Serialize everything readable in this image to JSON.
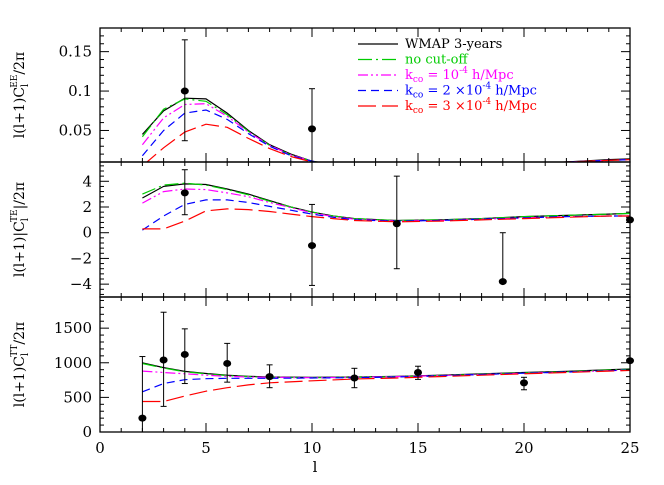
{
  "chart_data": [
    {
      "type": "line",
      "ylabel": "l(l+1)C_l^EE/2π",
      "ylabel_parts": {
        "pre": "l(l+1)C",
        "sub": "l",
        "sup": "EE",
        "post": "/2π"
      },
      "xlim": [
        0,
        25
      ],
      "ylim": [
        0.01,
        0.18
      ],
      "yticks": [
        0.05,
        0.1,
        0.15
      ],
      "ytick_labels": [
        "0.05",
        "0.1",
        "0.15"
      ],
      "legend": {
        "placement": "top-right",
        "entries": [
          {
            "label_parts": [
              "WMAP 3-years"
            ],
            "color": "#000000",
            "dash": "solid"
          },
          {
            "label_parts": [
              "no cut-off"
            ],
            "color": "#00cc00",
            "dash": "dashdot"
          },
          {
            "label_parts": [
              "k",
              "co",
              " = 10",
              "-4",
              " h/Mpc"
            ],
            "color": "#ff00ff",
            "dash": "dashdotdot"
          },
          {
            "label_parts": [
              "k",
              "co",
              " = 2 ×10",
              "-4",
              " h/Mpc"
            ],
            "color": "#0000ff",
            "dash": "dashed"
          },
          {
            "label_parts": [
              "k",
              "co",
              " = 3 ×10",
              "-4",
              " h/Mpc"
            ],
            "color": "#ff0000",
            "dash": "longdash"
          }
        ]
      },
      "series": [
        {
          "color": "#000000",
          "dash": "solid",
          "x": [
            2,
            3,
            4,
            5,
            6,
            7,
            8,
            9,
            10,
            11,
            12,
            14,
            16,
            18,
            20,
            22,
            24,
            25
          ],
          "y": [
            0.045,
            0.075,
            0.091,
            0.09,
            0.072,
            0.05,
            0.032,
            0.02,
            0.011,
            0.007,
            0.005,
            0.004,
            0.005,
            0.006,
            0.008,
            0.01,
            0.013,
            0.014
          ]
        },
        {
          "color": "#00cc00",
          "dash": "dashdot",
          "x": [
            2,
            3,
            4,
            5,
            6,
            7,
            8,
            9,
            10,
            11,
            12,
            14,
            16,
            18,
            20,
            22,
            24,
            25
          ],
          "y": [
            0.042,
            0.077,
            0.09,
            0.087,
            0.07,
            0.049,
            0.031,
            0.019,
            0.011,
            0.007,
            0.005,
            0.004,
            0.005,
            0.006,
            0.008,
            0.01,
            0.012,
            0.013
          ]
        },
        {
          "color": "#ff00ff",
          "dash": "dashdotdot",
          "x": [
            2,
            3,
            4,
            5,
            6,
            7,
            8,
            9,
            10,
            11,
            12,
            14,
            16,
            18,
            20,
            22,
            24,
            25
          ],
          "y": [
            0.032,
            0.066,
            0.083,
            0.084,
            0.068,
            0.048,
            0.031,
            0.019,
            0.011,
            0.007,
            0.005,
            0.004,
            0.005,
            0.006,
            0.008,
            0.01,
            0.012,
            0.013
          ]
        },
        {
          "color": "#0000ff",
          "dash": "dashed",
          "x": [
            2,
            3,
            4,
            5,
            6,
            7,
            8,
            9,
            10,
            11,
            12,
            14,
            16,
            18,
            20,
            22,
            24,
            25
          ],
          "y": [
            0.018,
            0.05,
            0.072,
            0.076,
            0.064,
            0.046,
            0.03,
            0.018,
            0.011,
            0.007,
            0.005,
            0.004,
            0.005,
            0.006,
            0.008,
            0.01,
            0.012,
            0.013
          ]
        },
        {
          "color": "#ff0000",
          "dash": "longdash",
          "x": [
            2,
            3,
            4,
            5,
            6,
            7,
            8,
            9,
            10,
            11,
            12,
            14,
            16,
            18,
            20,
            22,
            24,
            25
          ],
          "y": [
            0.005,
            0.028,
            0.048,
            0.058,
            0.054,
            0.04,
            0.027,
            0.017,
            0.01,
            0.007,
            0.005,
            0.004,
            0.005,
            0.006,
            0.008,
            0.01,
            0.012,
            0.013
          ]
        }
      ],
      "points": [
        {
          "x": 4,
          "y": 0.1,
          "err_low": 0.037,
          "err_high": 0.165
        },
        {
          "x": 10,
          "y": 0.052,
          "err_low": 0.0,
          "err_high": 0.103
        }
      ]
    },
    {
      "type": "line",
      "ylabel": "l(l+1)C_l^TE/2π",
      "ylabel_parts": {
        "pre": "l(l+1)|C",
        "sub": "l",
        "sup": "TE",
        "post": "|/2π"
      },
      "xlim": [
        0,
        25
      ],
      "ylim": [
        -5,
        5.5
      ],
      "yticks": [
        -4,
        -2,
        0,
        2,
        4
      ],
      "ytick_labels": [
        "−4",
        "−2",
        "0",
        "2",
        "4"
      ],
      "series": [
        {
          "color": "#000000",
          "dash": "solid",
          "x": [
            2,
            3,
            4,
            5,
            6,
            7,
            8,
            9,
            10,
            11,
            12,
            14,
            16,
            18,
            20,
            22,
            24,
            25
          ],
          "y": [
            2.7,
            3.6,
            3.8,
            3.75,
            3.4,
            3.0,
            2.5,
            2.0,
            1.6,
            1.3,
            1.1,
            0.95,
            1.0,
            1.1,
            1.25,
            1.35,
            1.45,
            1.5
          ]
        },
        {
          "color": "#00cc00",
          "dash": "dashdot",
          "x": [
            2,
            3,
            4,
            5,
            6,
            7,
            8,
            9,
            10,
            11,
            12,
            14,
            16,
            18,
            20,
            22,
            24,
            25
          ],
          "y": [
            3.0,
            3.7,
            3.85,
            3.7,
            3.35,
            2.95,
            2.45,
            2.0,
            1.6,
            1.3,
            1.1,
            0.95,
            1.0,
            1.1,
            1.25,
            1.35,
            1.45,
            1.5
          ]
        },
        {
          "color": "#ff00ff",
          "dash": "dashdotdot",
          "x": [
            2,
            3,
            4,
            5,
            6,
            7,
            8,
            9,
            10,
            11,
            12,
            14,
            16,
            18,
            20,
            22,
            24,
            25
          ],
          "y": [
            2.3,
            3.2,
            3.4,
            3.35,
            3.1,
            2.8,
            2.35,
            1.95,
            1.55,
            1.25,
            1.05,
            0.9,
            0.95,
            1.05,
            1.15,
            1.25,
            1.3,
            1.3
          ]
        },
        {
          "color": "#0000ff",
          "dash": "dashed",
          "x": [
            2,
            3,
            4,
            5,
            6,
            7,
            8,
            9,
            10,
            11,
            12,
            14,
            16,
            18,
            20,
            22,
            24,
            25
          ],
          "y": [
            0.2,
            1.3,
            2.2,
            2.55,
            2.55,
            2.35,
            2.05,
            1.75,
            1.45,
            1.2,
            1.0,
            0.9,
            0.95,
            1.05,
            1.15,
            1.25,
            1.3,
            1.3
          ]
        },
        {
          "color": "#ff0000",
          "dash": "longdash",
          "x": [
            2,
            3,
            4,
            5,
            6,
            7,
            8,
            9,
            10,
            11,
            12,
            14,
            16,
            18,
            20,
            22,
            24,
            25
          ],
          "y": [
            0.3,
            0.3,
            0.9,
            1.7,
            1.85,
            1.8,
            1.65,
            1.45,
            1.25,
            1.1,
            0.95,
            0.85,
            0.9,
            1.0,
            1.1,
            1.2,
            1.3,
            1.3
          ]
        }
      ],
      "points": [
        {
          "x": 4,
          "y": 3.1,
          "err_low": 1.4,
          "err_high": 4.9
        },
        {
          "x": 10,
          "y": -1.0,
          "err_low": -4.1,
          "err_high": 2.2
        },
        {
          "x": 14,
          "y": 0.7,
          "err_low": -2.8,
          "err_high": 4.4
        },
        {
          "x": 19,
          "y": -3.8,
          "err_low": -3.8,
          "err_high": 0.0
        },
        {
          "x": 25,
          "y": 1.0,
          "err_low": 1.0,
          "err_high": 1.0
        }
      ]
    },
    {
      "type": "line",
      "ylabel": "l(l+1)C_l^TT/2π",
      "ylabel_parts": {
        "pre": "l(l+1)C",
        "sub": "l",
        "sup": "TT",
        "post": "/2π"
      },
      "xlabel": "l",
      "xlim": [
        0,
        25
      ],
      "ylim": [
        0,
        1950
      ],
      "yticks": [
        0,
        500,
        1000,
        1500
      ],
      "ytick_labels": [
        "0",
        "500",
        "1000",
        "1500"
      ],
      "xticks": [
        0,
        5,
        10,
        15,
        20,
        25
      ],
      "xtick_labels": [
        "0",
        "5",
        "10",
        "15",
        "20",
        "25"
      ],
      "series": [
        {
          "color": "#000000",
          "dash": "solid",
          "x": [
            2,
            3,
            4,
            5,
            6,
            7,
            8,
            10,
            12,
            14,
            16,
            18,
            20,
            22,
            24,
            25
          ],
          "y": [
            1000,
            930,
            875,
            845,
            820,
            805,
            795,
            790,
            795,
            805,
            820,
            840,
            860,
            875,
            900,
            910
          ]
        },
        {
          "color": "#00cc00",
          "dash": "dashdot",
          "x": [
            2,
            3,
            4,
            5,
            6,
            7,
            8,
            10,
            12,
            14,
            16,
            18,
            20,
            22,
            24,
            25
          ],
          "y": [
            990,
            925,
            870,
            840,
            815,
            800,
            790,
            785,
            790,
            800,
            815,
            835,
            855,
            870,
            895,
            905
          ]
        },
        {
          "color": "#ff00ff",
          "dash": "dashdotdot",
          "x": [
            2,
            3,
            4,
            5,
            6,
            7,
            8,
            10,
            12,
            14,
            16,
            18,
            20,
            22,
            24,
            25
          ],
          "y": [
            880,
            860,
            840,
            820,
            805,
            795,
            790,
            785,
            790,
            800,
            815,
            830,
            850,
            865,
            885,
            895
          ]
        },
        {
          "color": "#0000ff",
          "dash": "dashed",
          "x": [
            2,
            3,
            4,
            5,
            6,
            7,
            8,
            10,
            12,
            14,
            16,
            18,
            20,
            22,
            24,
            25
          ],
          "y": [
            580,
            700,
            755,
            770,
            775,
            775,
            775,
            780,
            785,
            795,
            810,
            830,
            850,
            865,
            885,
            895
          ]
        },
        {
          "color": "#ff0000",
          "dash": "longdash",
          "x": [
            2,
            3,
            4,
            5,
            6,
            7,
            8,
            10,
            12,
            14,
            16,
            18,
            20,
            22,
            24,
            25
          ],
          "y": [
            440,
            440,
            520,
            590,
            640,
            680,
            710,
            740,
            765,
            780,
            800,
            820,
            840,
            860,
            880,
            890
          ]
        }
      ],
      "points": [
        {
          "x": 2,
          "y": 200,
          "err_low": 0,
          "err_high": 1090
        },
        {
          "x": 3,
          "y": 1040,
          "err_low": 370,
          "err_high": 1730
        },
        {
          "x": 4,
          "y": 1120,
          "err_low": 700,
          "err_high": 1490
        },
        {
          "x": 6,
          "y": 990,
          "err_low": 720,
          "err_high": 1280
        },
        {
          "x": 8,
          "y": 800,
          "err_low": 640,
          "err_high": 970
        },
        {
          "x": 12,
          "y": 780,
          "err_low": 640,
          "err_high": 920
        },
        {
          "x": 15,
          "y": 860,
          "err_low": 760,
          "err_high": 950
        },
        {
          "x": 20,
          "y": 710,
          "err_low": 610,
          "err_high": 790
        },
        {
          "x": 25,
          "y": 1030,
          "err_low": 1030,
          "err_high": 1030
        }
      ]
    }
  ]
}
